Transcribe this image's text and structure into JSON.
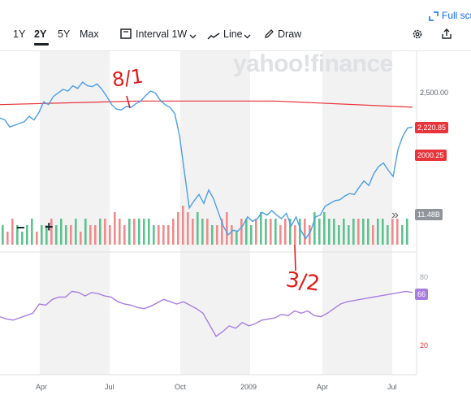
{
  "toolbar": {
    "ranges": [
      "1Y",
      "2Y",
      "5Y",
      "Max"
    ],
    "active_range": "2Y",
    "interval_label": "Interval",
    "interval_value": "1W",
    "line_label": "Line",
    "draw_label": "Draw",
    "fullscreen_label": "Full scr"
  },
  "watermark": "yahoo!finance",
  "icons": {
    "candle": "candlestick-icon",
    "line": "line-chart-icon",
    "draw": "pencil-icon",
    "settings": "gear-icon",
    "share": "share-icon",
    "fullscreen": "expand-icon"
  },
  "price_axis": {
    "label_2500": "2,500.00",
    "label_partial": "00"
  },
  "badges": {
    "ma_value": "2,220.85",
    "price_value": "2000.25",
    "volume_value": "11.48B",
    "rsi_value": "66"
  },
  "rsi_axis": {
    "upper": "80",
    "lower": "20"
  },
  "x_labels": [
    "Apr",
    "Jul",
    "Oct",
    "2009",
    "Apr",
    "Jul"
  ],
  "zoom": {
    "minus": "−",
    "plus": "+",
    "collapse": "»"
  },
  "annotations": {
    "top": "8/1",
    "bottom": "3/2"
  },
  "colors": {
    "price_line": "#4a9ee8",
    "ma_line": "#e8333a",
    "rsi_line": "#a77ee0",
    "volume_up": "#5cc28e",
    "volume_down": "#f08b8b",
    "annotation": "#e01b1b",
    "band": "#f2f2f3"
  },
  "chart_data": {
    "type": "line",
    "price_series": [
      2100,
      2080,
      2000,
      2020,
      2040,
      2060,
      2120,
      2080,
      2160,
      2280,
      2250,
      2340,
      2380,
      2420,
      2400,
      2460,
      2430,
      2500,
      2460,
      2450,
      2480,
      2420,
      2340,
      2250,
      2200,
      2190,
      2230,
      2220,
      2260,
      2290,
      2350,
      2400,
      2380,
      2300,
      2250,
      2220,
      2150,
      1900,
      1500,
      1100,
      1180,
      1250,
      1150,
      1300,
      1200,
      1050,
      900,
      800,
      850,
      840,
      900,
      1000,
      950,
      980,
      1050,
      1020,
      1070,
      1020,
      980,
      1040,
      900,
      1000,
      850,
      760,
      840,
      1000,
      1020,
      1120,
      1150,
      1180,
      1190,
      1230,
      1260,
      1250,
      1330,
      1400,
      1350,
      1480,
      1560,
      1600,
      1520,
      1450,
      1750,
      1900,
      1990,
      2000
    ],
    "ma_series_endpoints": [
      2250,
      2290,
      2290,
      2220.85
    ],
    "rsi_series": [
      45,
      43,
      42,
      44,
      46,
      48,
      56,
      55,
      60,
      62,
      62,
      67,
      66,
      63,
      66,
      65,
      63,
      62,
      58,
      56,
      55,
      53,
      52,
      54,
      57,
      60,
      58,
      56,
      58,
      55,
      52,
      48,
      38,
      28,
      32,
      37,
      35,
      40,
      37,
      39,
      42,
      43,
      44,
      47,
      46,
      50,
      48,
      50,
      46,
      45,
      48,
      52,
      56,
      58,
      59,
      60,
      61,
      62,
      63,
      64,
      65,
      66,
      67,
      66
    ],
    "volume_series": [
      3,
      2,
      4,
      3,
      2,
      3,
      4,
      2,
      3,
      3,
      4,
      3,
      4,
      3,
      3,
      4,
      2,
      4,
      3,
      3,
      4,
      4,
      3,
      5,
      4,
      3,
      4,
      4,
      4,
      4,
      4,
      3,
      3,
      3,
      3,
      4,
      5,
      6,
      5,
      4,
      5,
      4,
      4,
      3,
      3,
      4,
      5,
      3,
      2,
      4,
      4,
      3,
      4,
      5,
      4,
      4,
      4,
      3,
      4,
      4,
      3,
      4,
      4,
      3,
      5,
      4,
      5,
      4,
      4,
      3,
      4,
      3,
      4,
      4,
      4,
      4,
      3,
      4,
      4,
      3,
      4,
      4,
      3,
      4
    ],
    "price_ylabel_2500": 2500,
    "rsi_levels": [
      20,
      80
    ]
  }
}
